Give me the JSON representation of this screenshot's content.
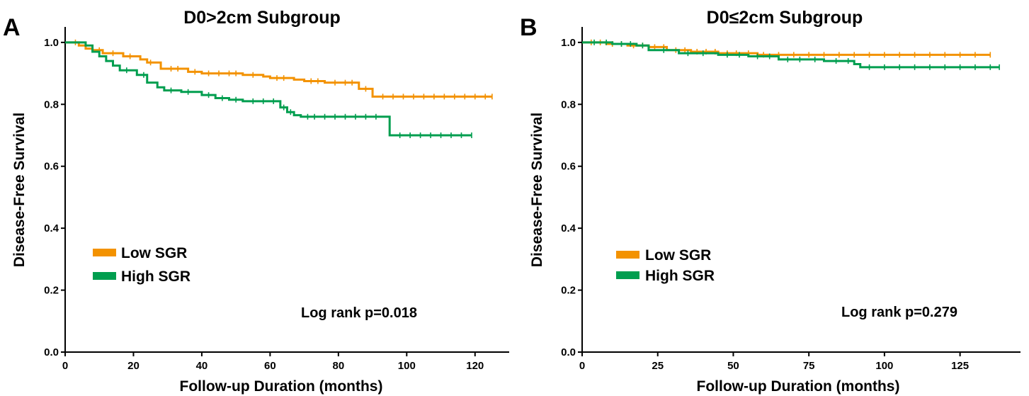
{
  "chart_data": [
    {
      "type": "line",
      "panel_label": "A",
      "title": "D0>2cm Subgroup",
      "xlabel": "Follow-up Duration (months)",
      "ylabel": "Disease-Free Survival",
      "xlim": [
        0,
        130
      ],
      "ylim": [
        0,
        1.05
      ],
      "xticks": [
        0,
        20,
        40,
        60,
        80,
        100,
        120
      ],
      "yticks": [
        0.0,
        0.2,
        0.4,
        0.6,
        0.8,
        1.0
      ],
      "ytick_labels": [
        "0.0",
        "0.2",
        "0.4",
        "0.6",
        "0.8",
        "1.0"
      ],
      "grid": false,
      "legend_position": "middle-left",
      "annotation": "Log rank p=0.018",
      "series": [
        {
          "name": "Low SGR",
          "color": "#F39200",
          "x": [
            0,
            4,
            6,
            8,
            11,
            17,
            22,
            24,
            28,
            36,
            40,
            52,
            58,
            60,
            67,
            70,
            76,
            86,
            90,
            125
          ],
          "y": [
            1.0,
            0.99,
            0.98,
            0.975,
            0.965,
            0.955,
            0.945,
            0.935,
            0.915,
            0.905,
            0.9,
            0.895,
            0.89,
            0.885,
            0.88,
            0.875,
            0.87,
            0.85,
            0.825,
            0.825
          ],
          "censor_x": [
            3,
            10,
            14,
            19,
            25,
            31,
            33,
            38,
            42,
            45,
            48,
            50,
            55,
            62,
            64,
            72,
            74,
            79,
            82,
            84,
            88,
            93,
            96,
            99,
            102,
            105,
            108,
            111,
            114,
            117,
            120,
            123,
            125
          ]
        },
        {
          "name": "High SGR",
          "color": "#009E4F",
          "x": [
            0,
            6,
            8,
            10,
            12,
            14,
            16,
            21,
            24,
            27,
            29,
            34,
            40,
            44,
            48,
            52,
            63,
            65,
            67,
            69,
            94,
            95,
            119
          ],
          "y": [
            1.0,
            0.99,
            0.97,
            0.955,
            0.94,
            0.925,
            0.91,
            0.895,
            0.87,
            0.855,
            0.845,
            0.84,
            0.83,
            0.82,
            0.815,
            0.81,
            0.79,
            0.775,
            0.765,
            0.76,
            0.76,
            0.7,
            0.7
          ],
          "censor_x": [
            18,
            23,
            31,
            36,
            42,
            46,
            50,
            55,
            58,
            61,
            64,
            66,
            71,
            73,
            76,
            79,
            82,
            85,
            88,
            91,
            98,
            101,
            104,
            107,
            110,
            113,
            116,
            119
          ]
        }
      ]
    },
    {
      "type": "line",
      "panel_label": "B",
      "title": "D0≤2cm Subgroup",
      "xlabel": "Follow-up Duration (months)",
      "ylabel": "Disease-Free Survival",
      "xlim": [
        0,
        145
      ],
      "ylim": [
        0,
        1.05
      ],
      "xticks": [
        0,
        25,
        50,
        75,
        100,
        125
      ],
      "yticks": [
        0.0,
        0.2,
        0.4,
        0.6,
        0.8,
        1.0
      ],
      "ytick_labels": [
        "0.0",
        "0.2",
        "0.4",
        "0.6",
        "0.8",
        "1.0"
      ],
      "grid": false,
      "legend_position": "middle-left",
      "annotation": "Log rank p=0.279",
      "series": [
        {
          "name": "Low SGR",
          "color": "#F39200",
          "x": [
            0,
            8,
            15,
            22,
            28,
            36,
            45,
            58,
            135
          ],
          "y": [
            1.0,
            0.995,
            0.99,
            0.985,
            0.975,
            0.97,
            0.965,
            0.96,
            0.96
          ],
          "censor_x": [
            3,
            6,
            10,
            13,
            17,
            20,
            24,
            27,
            31,
            34,
            38,
            41,
            44,
            48,
            51,
            55,
            60,
            65,
            70,
            75,
            80,
            85,
            90,
            95,
            100,
            105,
            110,
            115,
            120,
            125,
            130,
            135
          ]
        },
        {
          "name": "High SGR",
          "color": "#009E4F",
          "x": [
            0,
            10,
            18,
            22,
            32,
            45,
            55,
            65,
            80,
            90,
            92,
            138
          ],
          "y": [
            1.0,
            0.995,
            0.99,
            0.975,
            0.965,
            0.96,
            0.955,
            0.945,
            0.94,
            0.93,
            0.92,
            0.92
          ],
          "censor_x": [
            4,
            8,
            13,
            16,
            20,
            27,
            35,
            40,
            48,
            52,
            58,
            62,
            68,
            72,
            77,
            84,
            88,
            95,
            100,
            105,
            110,
            115,
            120,
            125,
            130,
            135,
            138
          ]
        }
      ]
    }
  ]
}
